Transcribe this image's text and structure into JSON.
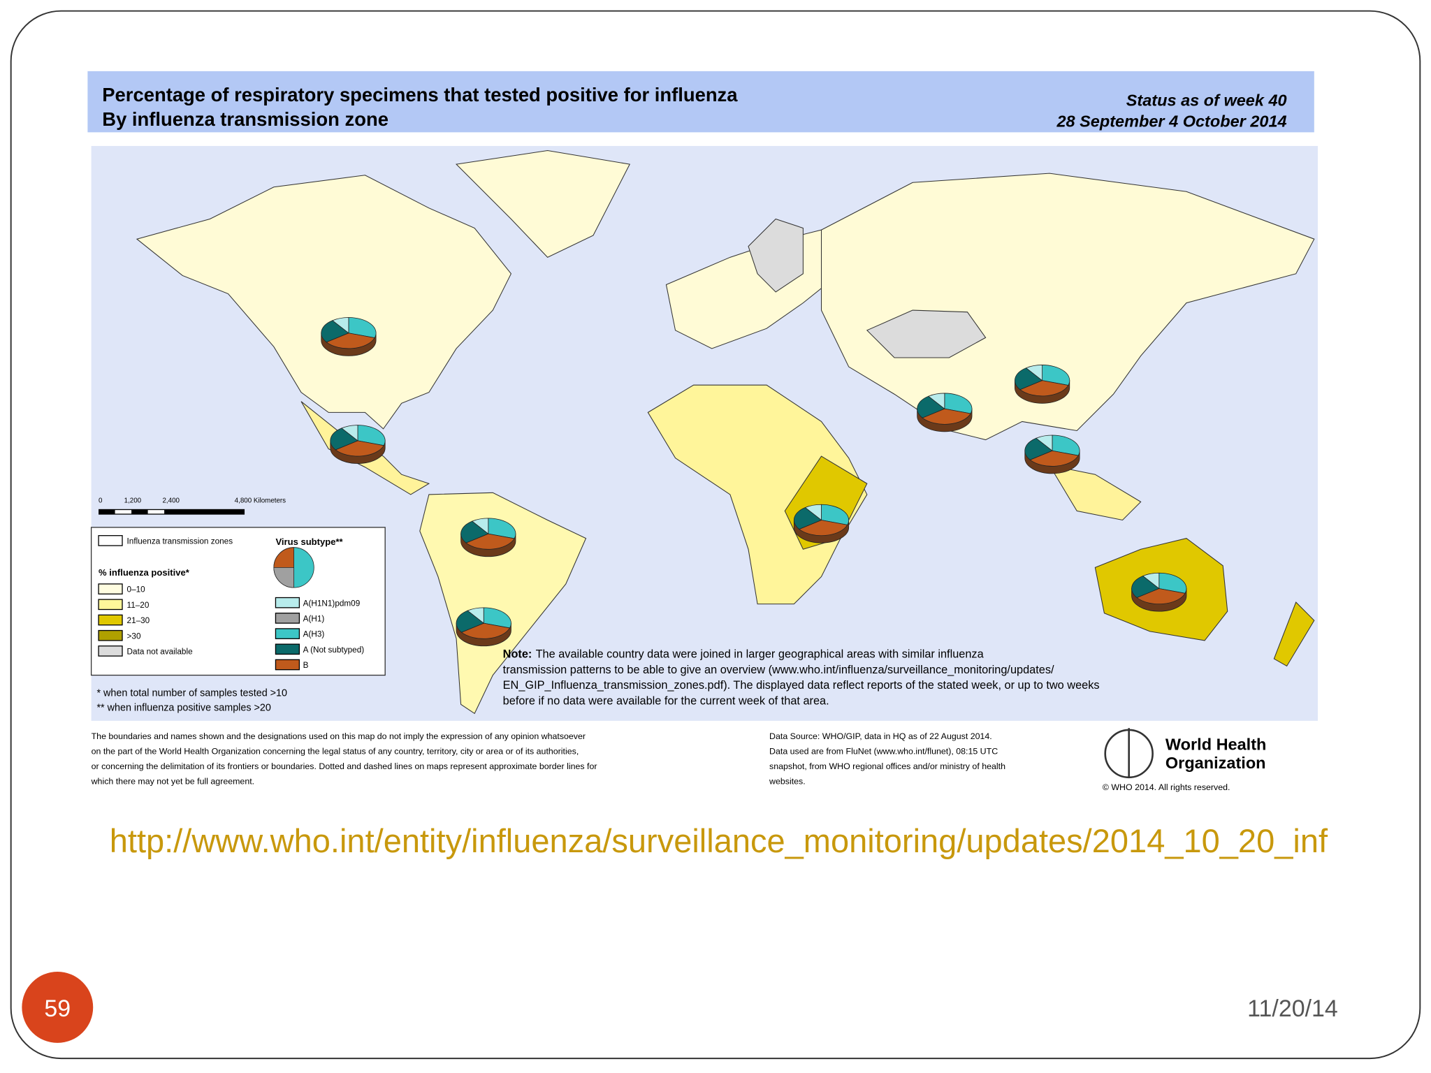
{
  "header": {
    "title_line1": "Percentage of respiratory specimens that tested positive for influenza",
    "title_line2": "By influenza transmission zone",
    "status": "Status as of week 40",
    "dates": "28 September 4 October 2014"
  },
  "scale_bar": {
    "labels": [
      "0",
      "1,200",
      "2,400",
      "4,800 Kilometers"
    ]
  },
  "legend": {
    "zones_label": "Influenza transmission zones",
    "subtype_title": "Virus subtype**",
    "positive_title": "% influenza positive*",
    "positive_classes": [
      "0–10",
      "11–20",
      "21–30",
      ">30",
      "Data not available"
    ],
    "subtypes": [
      "A(H1N1)pdm09",
      "A(H1)",
      "A(H3)",
      "A (Not subtyped)",
      "B"
    ],
    "footnotes": [
      "*  when total number of samples tested >10",
      "** when influenza positive samples >20"
    ]
  },
  "note": {
    "label": "Note:",
    "lines": [
      "The available country data were joined in larger geographical areas with similar influenza",
      "transmission patterns to be able to give an overview (www.who.int/influenza/surveillance_monitoring/updates/",
      "EN_GIP_Influenza_transmission_zones.pdf). The displayed data reflect reports of the stated week, or up to two weeks",
      "before if no data were available for the current week of that area."
    ]
  },
  "disclaimer": {
    "lines": [
      "The boundaries and names shown and the designations used on this map do not imply the expression of any opinion whatsoever",
      "on the part of the World Health Organization concerning the legal status of any country, territory, city or area or of its authorities,",
      "or concerning the delimitation of its frontiers or boundaries. Dotted and dashed lines on maps represent approximate border lines for",
      "which there may not yet be full agreement."
    ]
  },
  "data_source": {
    "lines": [
      "Data Source: WHO/GIP, data in HQ as of 22 August 2014.",
      "Data used are from FluNet (www.who.int/flunet), 08:15 UTC",
      "snapshot, from WHO regional offices and/or ministry of health",
      "websites."
    ]
  },
  "who": {
    "name_line1": "World Health",
    "name_line2": "Organization",
    "copyright": "© WHO 2014. All rights reserved."
  },
  "url": "http://www.who.int/entity/influenza/surveillance_monitoring/updates/2014_10_20_inf",
  "slide_number": "59",
  "date": "11/20/14"
}
